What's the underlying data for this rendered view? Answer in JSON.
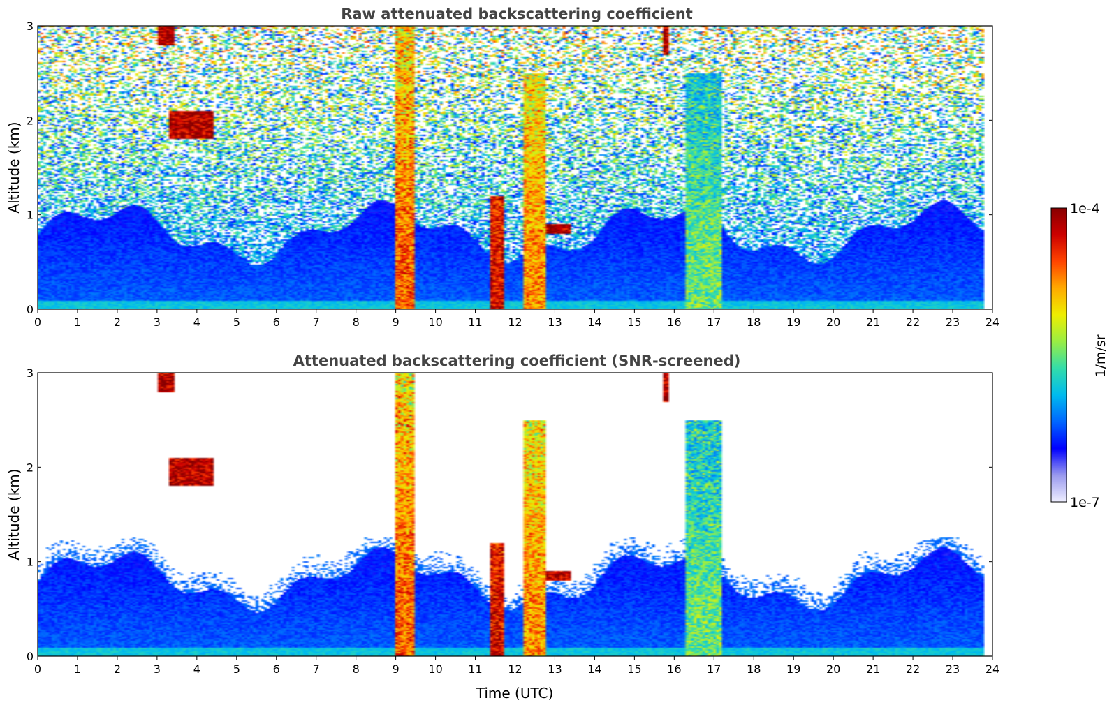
{
  "chart_data": [
    {
      "type": "heatmap",
      "title": "Raw attenuated backscattering coefficient",
      "xlabel": "",
      "ylabel": "Altitude (km)",
      "xlim": [
        0,
        24
      ],
      "ylim": [
        0,
        3
      ],
      "x_ticks": [
        "0",
        "1",
        "2",
        "3",
        "4",
        "5",
        "6",
        "7",
        "8",
        "9",
        "10",
        "11",
        "12",
        "13",
        "14",
        "15",
        "16",
        "17",
        "18",
        "19",
        "20",
        "21",
        "22",
        "23",
        "24"
      ],
      "y_ticks": [
        "0",
        "1",
        "2",
        "3"
      ],
      "noise_level": 0.55,
      "features": [
        {
          "name": "cloud-layer-3km",
          "t0": 3.0,
          "t1": 3.4,
          "z0": 2.8,
          "z1": 3.0,
          "value": 0.95
        },
        {
          "name": "cloud-layer-2km",
          "t0": 3.3,
          "t1": 4.4,
          "z0": 1.8,
          "z1": 2.1,
          "value": 0.95
        },
        {
          "name": "rain-shaft-9h",
          "t0": 9.0,
          "t1": 9.45,
          "z0": 0.0,
          "z1": 3.0,
          "value": 0.8
        },
        {
          "name": "rain-shaft-11h",
          "t0": 11.4,
          "t1": 11.7,
          "z0": 0.0,
          "z1": 1.2,
          "value": 0.9
        },
        {
          "name": "rain-shaft-12h",
          "t0": 12.2,
          "t1": 12.8,
          "z0": 0.0,
          "z1": 2.5,
          "value": 0.75
        },
        {
          "name": "cloud-13h",
          "t0": 12.8,
          "t1": 13.4,
          "z0": 0.8,
          "z1": 0.9,
          "value": 0.95
        },
        {
          "name": "drizzle-16h",
          "t0": 16.3,
          "t1": 17.2,
          "z0": 0.0,
          "z1": 2.5,
          "value": 0.5
        },
        {
          "name": "cloud-16h",
          "t0": 15.7,
          "t1": 15.9,
          "z0": 2.7,
          "z1": 3.0,
          "value": 0.95
        }
      ]
    },
    {
      "type": "heatmap",
      "title": "Attenuated backscattering coefficient (SNR-screened)",
      "xlabel": "Time (UTC)",
      "ylabel": "Altitude (km)",
      "xlim": [
        0,
        24
      ],
      "ylim": [
        0,
        3
      ],
      "x_ticks": [
        "0",
        "1",
        "2",
        "3",
        "4",
        "5",
        "6",
        "7",
        "8",
        "9",
        "10",
        "11",
        "12",
        "13",
        "14",
        "15",
        "16",
        "17",
        "18",
        "19",
        "20",
        "21",
        "22",
        "23",
        "24"
      ],
      "y_ticks": [
        "0",
        "1",
        "2",
        "3"
      ],
      "screened": true,
      "boundary_layer_top_km": 1.0
    }
  ],
  "colorbar": {
    "label": "1/m/sr",
    "max_label": "1e-4",
    "min_label": "1e-7",
    "range": [
      1e-07,
      0.0001
    ],
    "colors": [
      "#eeeeff",
      "#9999ee",
      "#0000ff",
      "#0066ff",
      "#00bbee",
      "#33ddaa",
      "#99ee44",
      "#eeee00",
      "#ffaa00",
      "#ff4400",
      "#cc0000",
      "#880000"
    ]
  },
  "colors": {
    "frame": "#000000",
    "title": "#444444",
    "background": "#ffffff"
  }
}
